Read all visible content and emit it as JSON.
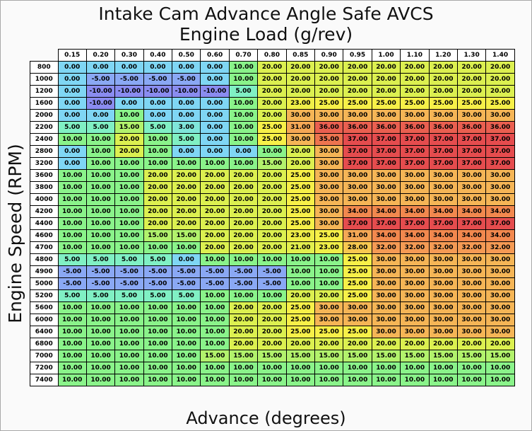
{
  "title": "Intake Cam Advance Angle Safe AVCS",
  "subtitle": "Engine Load (g/rev)",
  "x_axis_label": "Advance (degrees)",
  "y_axis_label": "Engine Speed (RPM)",
  "columns": [
    "0.15",
    "0.20",
    "0.30",
    "0.40",
    "0.50",
    "0.60",
    "0.70",
    "0.80",
    "0.85",
    "0.90",
    "0.95",
    "1.00",
    "1.10",
    "1.20",
    "1.30",
    "1.40"
  ],
  "rows": [
    {
      "label": "800",
      "values": [
        "0.00",
        "0.00",
        "0.00",
        "0.00",
        "0.00",
        "0.00",
        "10.00",
        "20.00",
        "20.00",
        "20.00",
        "20.00",
        "20.00",
        "20.00",
        "20.00",
        "20.00",
        "20.00"
      ]
    },
    {
      "label": "1000",
      "values": [
        "0.00",
        "-5.00",
        "-5.00",
        "-5.00",
        "-5.00",
        "0.00",
        "10.00",
        "20.00",
        "20.00",
        "20.00",
        "20.00",
        "20.00",
        "20.00",
        "20.00",
        "20.00",
        "20.00"
      ]
    },
    {
      "label": "1200",
      "values": [
        "0.00",
        "-10.00",
        "-10.00",
        "-10.00",
        "-10.00",
        "-10.00",
        "5.00",
        "20.00",
        "20.00",
        "20.00",
        "20.00",
        "20.00",
        "20.00",
        "20.00",
        "20.00",
        "20.00"
      ]
    },
    {
      "label": "1600",
      "values": [
        "0.00",
        "-10.00",
        "0.00",
        "0.00",
        "0.00",
        "0.00",
        "10.00",
        "20.00",
        "23.00",
        "25.00",
        "25.00",
        "25.00",
        "25.00",
        "25.00",
        "25.00",
        "25.00"
      ]
    },
    {
      "label": "2000",
      "values": [
        "0.00",
        "0.00",
        "10.00",
        "0.00",
        "0.00",
        "0.00",
        "10.00",
        "20.00",
        "30.00",
        "30.00",
        "30.00",
        "30.00",
        "30.00",
        "30.00",
        "30.00",
        "30.00"
      ]
    },
    {
      "label": "2200",
      "values": [
        "5.00",
        "5.00",
        "15.00",
        "5.00",
        "3.00",
        "0.00",
        "10.00",
        "25.00",
        "31.00",
        "36.00",
        "36.00",
        "36.00",
        "36.00",
        "36.00",
        "36.00",
        "36.00"
      ]
    },
    {
      "label": "2400",
      "values": [
        "10.00",
        "10.00",
        "20.00",
        "10.00",
        "5.00",
        "0.00",
        "10.00",
        "25.00",
        "30.00",
        "35.00",
        "37.00",
        "37.00",
        "37.00",
        "37.00",
        "37.00",
        "37.00"
      ]
    },
    {
      "label": "2800",
      "values": [
        "0.00",
        "10.00",
        "20.00",
        "10.00",
        "0.00",
        "0.00",
        "0.00",
        "10.00",
        "20.00",
        "30.00",
        "37.00",
        "37.00",
        "37.00",
        "37.00",
        "37.00",
        "37.00"
      ]
    },
    {
      "label": "3200",
      "values": [
        "0.00",
        "10.00",
        "10.00",
        "10.00",
        "10.00",
        "10.00",
        "10.00",
        "15.00",
        "20.00",
        "30.00",
        "37.00",
        "37.00",
        "37.00",
        "37.00",
        "37.00",
        "37.00"
      ]
    },
    {
      "label": "3600",
      "values": [
        "10.00",
        "10.00",
        "10.00",
        "20.00",
        "20.00",
        "20.00",
        "20.00",
        "20.00",
        "25.00",
        "30.00",
        "30.00",
        "30.00",
        "30.00",
        "30.00",
        "30.00",
        "30.00"
      ]
    },
    {
      "label": "3800",
      "values": [
        "10.00",
        "10.00",
        "10.00",
        "20.00",
        "20.00",
        "20.00",
        "20.00",
        "20.00",
        "25.00",
        "30.00",
        "30.00",
        "30.00",
        "30.00",
        "30.00",
        "30.00",
        "30.00"
      ]
    },
    {
      "label": "4000",
      "values": [
        "10.00",
        "10.00",
        "10.00",
        "20.00",
        "20.00",
        "20.00",
        "20.00",
        "20.00",
        "25.00",
        "30.00",
        "30.00",
        "30.00",
        "30.00",
        "30.00",
        "30.00",
        "30.00"
      ]
    },
    {
      "label": "4200",
      "values": [
        "10.00",
        "10.00",
        "10.00",
        "20.00",
        "20.00",
        "20.00",
        "20.00",
        "20.00",
        "25.00",
        "30.00",
        "34.00",
        "34.00",
        "34.00",
        "34.00",
        "34.00",
        "34.00"
      ]
    },
    {
      "label": "4400",
      "values": [
        "10.00",
        "10.00",
        "10.00",
        "20.00",
        "20.00",
        "20.00",
        "20.00",
        "20.00",
        "25.00",
        "30.00",
        "37.00",
        "37.00",
        "37.00",
        "37.00",
        "37.00",
        "37.00"
      ]
    },
    {
      "label": "4600",
      "values": [
        "10.00",
        "10.00",
        "10.00",
        "15.00",
        "15.00",
        "20.00",
        "20.00",
        "20.00",
        "23.00",
        "25.00",
        "31.00",
        "34.00",
        "34.00",
        "34.00",
        "34.00",
        "34.00"
      ]
    },
    {
      "label": "4700",
      "values": [
        "10.00",
        "10.00",
        "10.00",
        "10.00",
        "10.00",
        "20.00",
        "20.00",
        "20.00",
        "21.00",
        "23.00",
        "28.00",
        "32.00",
        "32.00",
        "32.00",
        "32.00",
        "32.00"
      ]
    },
    {
      "label": "4800",
      "values": [
        "5.00",
        "5.00",
        "5.00",
        "5.00",
        "0.00",
        "10.00",
        "10.00",
        "10.00",
        "10.00",
        "10.00",
        "25.00",
        "30.00",
        "30.00",
        "30.00",
        "30.00",
        "30.00"
      ]
    },
    {
      "label": "4900",
      "values": [
        "-5.00",
        "-5.00",
        "-5.00",
        "-5.00",
        "-5.00",
        "-5.00",
        "-5.00",
        "-5.00",
        "10.00",
        "10.00",
        "25.00",
        "30.00",
        "30.00",
        "30.00",
        "30.00",
        "30.00"
      ]
    },
    {
      "label": "5000",
      "values": [
        "-5.00",
        "-5.00",
        "-5.00",
        "-5.00",
        "-5.00",
        "-5.00",
        "-5.00",
        "-5.00",
        "10.00",
        "10.00",
        "25.00",
        "30.00",
        "30.00",
        "30.00",
        "30.00",
        "30.00"
      ]
    },
    {
      "label": "5200",
      "values": [
        "5.00",
        "5.00",
        "5.00",
        "5.00",
        "5.00",
        "10.00",
        "10.00",
        "10.00",
        "20.00",
        "20.00",
        "25.00",
        "30.00",
        "30.00",
        "30.00",
        "30.00",
        "30.00"
      ]
    },
    {
      "label": "5600",
      "values": [
        "10.00",
        "10.00",
        "10.00",
        "10.00",
        "10.00",
        "10.00",
        "20.00",
        "20.00",
        "25.00",
        "30.00",
        "30.00",
        "30.00",
        "30.00",
        "30.00",
        "30.00",
        "30.00"
      ]
    },
    {
      "label": "6000",
      "values": [
        "10.00",
        "10.00",
        "10.00",
        "10.00",
        "10.00",
        "10.00",
        "20.00",
        "20.00",
        "25.00",
        "30.00",
        "30.00",
        "30.00",
        "30.00",
        "30.00",
        "30.00",
        "30.00"
      ]
    },
    {
      "label": "6400",
      "values": [
        "10.00",
        "10.00",
        "10.00",
        "10.00",
        "10.00",
        "10.00",
        "20.00",
        "20.00",
        "25.00",
        "25.00",
        "25.00",
        "30.00",
        "30.00",
        "30.00",
        "30.00",
        "30.00"
      ]
    },
    {
      "label": "6800",
      "values": [
        "10.00",
        "10.00",
        "10.00",
        "10.00",
        "10.00",
        "10.00",
        "20.00",
        "20.00",
        "20.00",
        "20.00",
        "20.00",
        "20.00",
        "20.00",
        "20.00",
        "20.00",
        "20.00"
      ]
    },
    {
      "label": "7000",
      "values": [
        "10.00",
        "10.00",
        "10.00",
        "10.00",
        "10.00",
        "15.00",
        "15.00",
        "15.00",
        "15.00",
        "15.00",
        "15.00",
        "15.00",
        "15.00",
        "15.00",
        "15.00",
        "15.00"
      ]
    },
    {
      "label": "7200",
      "values": [
        "10.00",
        "10.00",
        "10.00",
        "10.00",
        "10.00",
        "10.00",
        "10.00",
        "10.00",
        "10.00",
        "10.00",
        "10.00",
        "10.00",
        "10.00",
        "10.00",
        "10.00",
        "10.00"
      ]
    },
    {
      "label": "7400",
      "values": [
        "10.00",
        "10.00",
        "10.00",
        "10.00",
        "10.00",
        "10.00",
        "10.00",
        "10.00",
        "10.00",
        "10.00",
        "10.00",
        "10.00",
        "10.00",
        "10.00",
        "10.00",
        "10.00"
      ]
    }
  ],
  "colorscale": [
    {
      "value": -10,
      "color": "#8a8cf0"
    },
    {
      "value": -5,
      "color": "#8aa8f4"
    },
    {
      "value": 0,
      "color": "#7fd6f4"
    },
    {
      "value": 3,
      "color": "#7fe6da"
    },
    {
      "value": 5,
      "color": "#80f0c4"
    },
    {
      "value": 10,
      "color": "#8af38a"
    },
    {
      "value": 15,
      "color": "#b2f26c"
    },
    {
      "value": 20,
      "color": "#dcf050"
    },
    {
      "value": 23,
      "color": "#f0ee48"
    },
    {
      "value": 25,
      "color": "#f7f048"
    },
    {
      "value": 28,
      "color": "#f8c850"
    },
    {
      "value": 30,
      "color": "#f5b556"
    },
    {
      "value": 32,
      "color": "#f59a54"
    },
    {
      "value": 34,
      "color": "#f2884e"
    },
    {
      "value": 36,
      "color": "#ea5f50"
    },
    {
      "value": 37,
      "color": "#e54c4e"
    }
  ]
}
